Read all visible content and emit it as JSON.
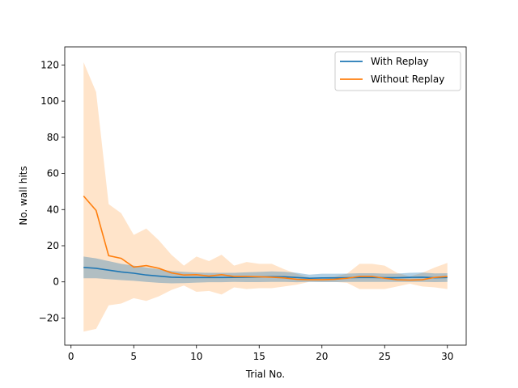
{
  "chart_data": {
    "type": "line",
    "xlabel": "Trial No.",
    "ylabel": "No. wall hits",
    "xlim": [
      -0.5,
      31.5
    ],
    "ylim": [
      -35,
      130
    ],
    "xticks": [
      0,
      5,
      10,
      15,
      20,
      25,
      30
    ],
    "yticks": [
      -20,
      0,
      20,
      40,
      60,
      80,
      100,
      120
    ],
    "grid": false,
    "legend_position": "upper right",
    "x": [
      1,
      2,
      3,
      4,
      5,
      6,
      7,
      8,
      9,
      10,
      11,
      12,
      13,
      14,
      15,
      16,
      17,
      18,
      19,
      20,
      21,
      22,
      23,
      24,
      25,
      26,
      27,
      28,
      29,
      30
    ],
    "series": [
      {
        "name": "With Replay",
        "color": "#1f77b4",
        "band_color": "#1f77b4",
        "values": [
          8,
          7.5,
          6.5,
          5.5,
          4.8,
          3.8,
          3.2,
          2.6,
          2.4,
          2.4,
          2.4,
          2.4,
          2.5,
          2.6,
          2.7,
          2.9,
          2.8,
          2.4,
          2,
          2.2,
          2.2,
          2.3,
          2.4,
          2.4,
          2.3,
          2.3,
          2.5,
          2.6,
          2.3,
          2.4
        ],
        "upper": [
          14,
          13,
          11.5,
          10,
          9,
          8,
          7,
          6,
          5.5,
          5.2,
          5,
          5,
          5,
          5.3,
          5.5,
          5.8,
          5.6,
          5,
          4,
          4.5,
          4.5,
          4.6,
          4.8,
          4.8,
          4.6,
          4.6,
          5,
          5.2,
          4.7,
          4.8
        ],
        "lower": [
          2,
          2,
          1.5,
          1,
          0.6,
          0,
          -0.5,
          -0.8,
          -0.7,
          -0.4,
          -0.2,
          -0.2,
          0,
          -0.1,
          -0.1,
          0,
          0,
          -0.2,
          0,
          -0.1,
          -0.1,
          0,
          0,
          0,
          0,
          0,
          0,
          0,
          -0.1,
          0
        ]
      },
      {
        "name": "Without Replay",
        "color": "#ff7f0e",
        "band_color": "#ffa54f",
        "values": [
          47.5,
          39.5,
          14.5,
          13,
          8.2,
          9,
          7.5,
          5,
          3.8,
          4,
          3.2,
          4,
          3,
          3,
          2.8,
          2.6,
          2.2,
          1.4,
          1.2,
          1.2,
          1.4,
          2,
          3,
          3,
          2,
          1.2,
          1,
          1.2,
          2.5,
          3
        ],
        "upper": [
          121.5,
          105,
          43,
          38,
          26,
          29.5,
          23,
          15,
          9,
          14,
          11.5,
          15,
          9,
          11,
          10,
          10,
          7,
          4.5,
          2.5,
          2.5,
          3,
          4.5,
          10,
          10,
          9,
          5,
          3,
          5,
          8,
          10.5
        ],
        "lower": [
          -27.5,
          -26,
          -13,
          -12,
          -9,
          -10.5,
          -8,
          -4.5,
          -2,
          -5.5,
          -5,
          -7,
          -3,
          -4,
          -3.5,
          -3.5,
          -2.5,
          -1.5,
          0,
          0,
          0,
          -0.5,
          -4,
          -4,
          -4,
          -2.5,
          -1,
          -2.5,
          -3,
          -4
        ]
      }
    ]
  }
}
